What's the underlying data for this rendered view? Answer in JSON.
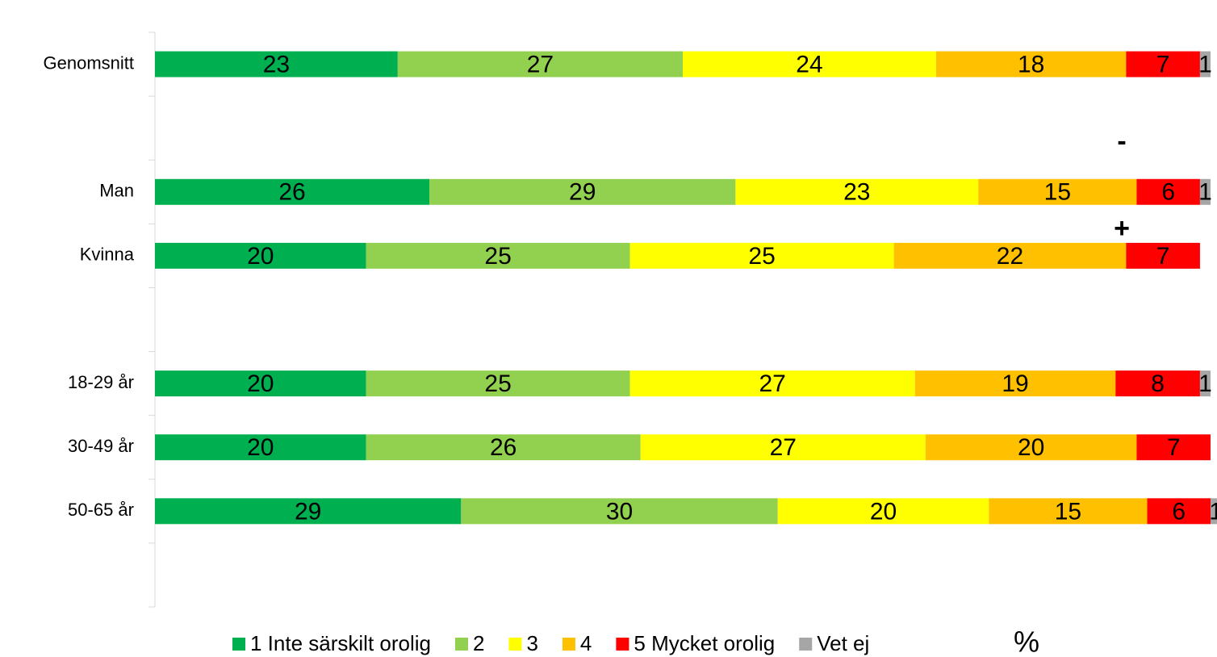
{
  "chart_data": {
    "type": "stacked_barh",
    "categories": [
      "Genomsnitt",
      null,
      "Man",
      "Kvinna",
      null,
      "18-29 år",
      "30-49 år",
      "50-65 år",
      null
    ],
    "series": [
      {
        "name": "1 Inte särskilt orolig",
        "color": "#00b050",
        "values": [
          23,
          null,
          26,
          20,
          null,
          20,
          20,
          29,
          null
        ]
      },
      {
        "name": "2",
        "color": "#92d050",
        "values": [
          27,
          null,
          29,
          25,
          null,
          25,
          26,
          30,
          null
        ]
      },
      {
        "name": "3",
        "color": "#ffff00",
        "values": [
          24,
          null,
          23,
          25,
          null,
          27,
          27,
          20,
          null
        ]
      },
      {
        "name": "4",
        "color": "#ffc000",
        "values": [
          18,
          null,
          15,
          22,
          null,
          19,
          20,
          15,
          null
        ]
      },
      {
        "name": "5 Mycket orolig",
        "color": "#ff0000",
        "values": [
          7,
          null,
          6,
          7,
          null,
          8,
          7,
          6,
          null
        ]
      },
      {
        "name": "Vet ej",
        "color": "#a6a6a6",
        "values": [
          1,
          null,
          1,
          0,
          null,
          1,
          0,
          1,
          null
        ]
      }
    ],
    "xlim": [
      0,
      100
    ],
    "unit_label": "%",
    "annotations": [
      "-",
      "+"
    ]
  }
}
